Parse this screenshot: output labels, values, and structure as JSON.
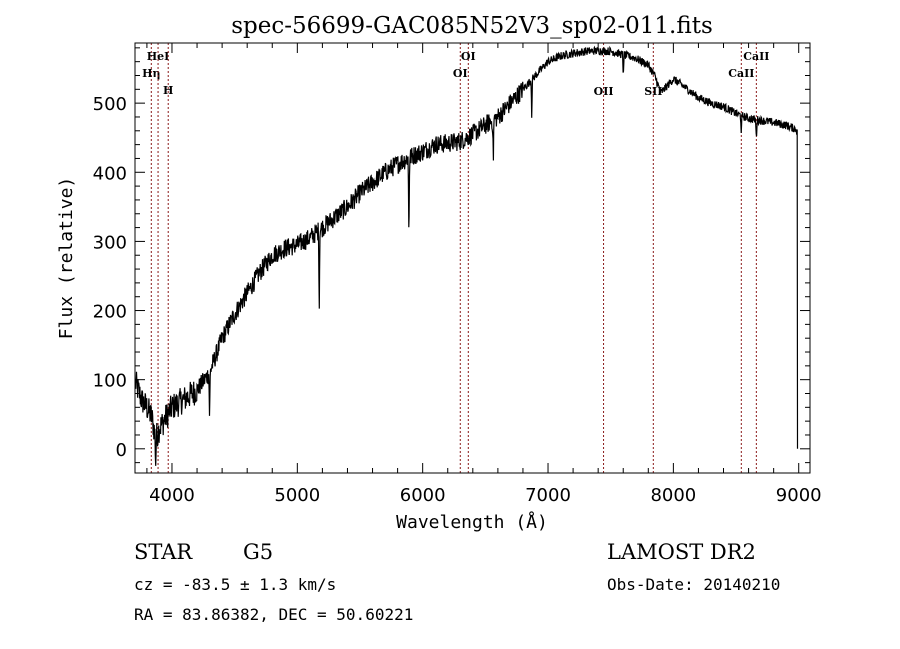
{
  "chart_data": {
    "type": "line",
    "title": "spec-56699-GAC085N52V3_sp02-011.fits",
    "xlabel": "Wavelength (Å)",
    "ylabel": "Flux (relative)",
    "xlim": [
      3705,
      9090
    ],
    "ylim": [
      -35,
      587
    ],
    "xticks": [
      4000,
      5000,
      6000,
      7000,
      8000,
      9000
    ],
    "xtick_labels": [
      "4000",
      "5000",
      "6000",
      "7000",
      "8000",
      "9000"
    ],
    "yticks": [
      0,
      100,
      200,
      300,
      400,
      500
    ],
    "ytick_labels": [
      "0",
      "100",
      "200",
      "300",
      "400",
      "500"
    ],
    "grid": false,
    "line_color": "#000000",
    "marker_color": "#8b1a1a",
    "continuum": {
      "x": [
        3710,
        3760,
        3800,
        3840,
        3870,
        3900,
        3950,
        4000,
        4100,
        4200,
        4300,
        4400,
        4500,
        4600,
        4700,
        4800,
        4900,
        5000,
        5100,
        5200,
        5300,
        5400,
        5500,
        5600,
        5700,
        5800,
        5900,
        6000,
        6100,
        6200,
        6300,
        6400,
        6500,
        6600,
        6700,
        6800,
        6900,
        7000,
        7100,
        7200,
        7300,
        7400,
        7500,
        7600,
        7700,
        7800,
        7850,
        7900,
        7950,
        8000,
        8100,
        8200,
        8300,
        8400,
        8500,
        8600,
        8700,
        8800,
        8900,
        8980
      ],
      "y": [
        95,
        70,
        60,
        45,
        15,
        30,
        45,
        60,
        72,
        85,
        110,
        160,
        195,
        225,
        255,
        280,
        290,
        295,
        305,
        320,
        335,
        350,
        370,
        385,
        400,
        412,
        422,
        430,
        440,
        442,
        445,
        455,
        468,
        480,
        500,
        520,
        540,
        560,
        568,
        572,
        575,
        576,
        575,
        570,
        565,
        555,
        540,
        515,
        525,
        535,
        522,
        508,
        500,
        495,
        485,
        478,
        475,
        472,
        468,
        462
      ]
    },
    "absorption": [
      {
        "x": 3870,
        "depth": 35
      },
      {
        "x": 4300,
        "depth": 70
      },
      {
        "x": 5175,
        "depth": 110
      },
      {
        "x": 5890,
        "depth": 120
      },
      {
        "x": 6563,
        "depth": 60
      },
      {
        "x": 6870,
        "depth": 50
      },
      {
        "x": 7600,
        "depth": 30
      },
      {
        "x": 8542,
        "depth": 25
      },
      {
        "x": 8662,
        "depth": 30
      }
    ],
    "end_drop": {
      "x": 8990,
      "y": 0
    },
    "spectral_lines": [
      {
        "name": "Hη",
        "wavelength": 3835,
        "label_pos": "upper"
      },
      {
        "name": "HeI",
        "wavelength": 3889,
        "label_pos": "top"
      },
      {
        "name": "H",
        "wavelength": 3970,
        "label_pos": "lower"
      },
      {
        "name": "OI",
        "wavelength": 6300,
        "label_pos": "upper"
      },
      {
        "name": "OI",
        "wavelength": 6364,
        "label_pos": "top"
      },
      {
        "name": "OII",
        "wavelength": 7443,
        "label_pos": "middle"
      },
      {
        "name": "SII",
        "wavelength": 7840,
        "label_pos": "middle"
      },
      {
        "name": "CaII",
        "wavelength": 8542,
        "label_pos": "upper"
      },
      {
        "name": "CaII",
        "wavelength": 8662,
        "label_pos": "top"
      }
    ]
  },
  "info": {
    "object_class": "STAR",
    "subclass": "G5",
    "redshift_text": "cz = -83.5 ± 1.3 km/s",
    "coords_text": "RA =  83.86382, DEC =  50.60221",
    "survey": "LAMOST DR2",
    "obs_date_text": "Obs-Date: 20140210"
  }
}
